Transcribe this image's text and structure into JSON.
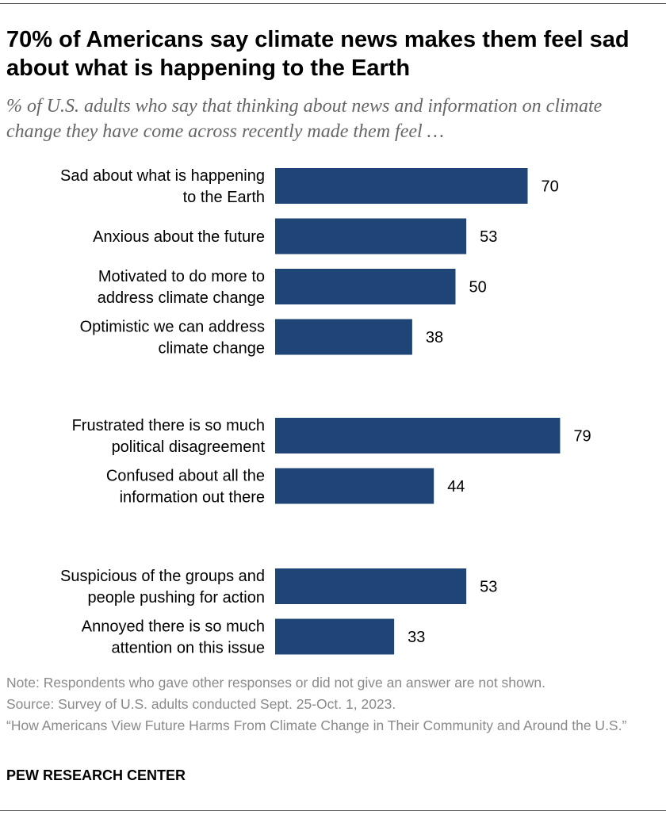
{
  "title": "70% of Americans say climate news makes them feel sad about what is happening to the Earth",
  "subtitle": "% of U.S. adults who say that thinking about news and information on climate change they have come across recently made them feel …",
  "chart_data": {
    "type": "bar",
    "orientation": "horizontal",
    "title": "70% of Americans say climate news makes them feel sad about what is happening to the Earth",
    "xlabel": "",
    "ylabel": "",
    "xlim": [
      0,
      100
    ],
    "grid": false,
    "bar_color": "#1f4576",
    "groups": [
      {
        "items": [
          {
            "label_lines": [
              "Sad about what is happening",
              "to the Earth"
            ],
            "value": 70
          },
          {
            "label_lines": [
              "Anxious about the future"
            ],
            "value": 53
          },
          {
            "label_lines": [
              "Motivated to do more to",
              "address climate change"
            ],
            "value": 50
          },
          {
            "label_lines": [
              "Optimistic we can address",
              "climate change"
            ],
            "value": 38
          }
        ]
      },
      {
        "items": [
          {
            "label_lines": [
              "Frustrated there is so much",
              "political disagreement"
            ],
            "value": 79
          },
          {
            "label_lines": [
              "Confused about all the",
              "information out there"
            ],
            "value": 44
          }
        ]
      },
      {
        "items": [
          {
            "label_lines": [
              "Suspicious of the groups and",
              "people pushing for action"
            ],
            "value": 53
          },
          {
            "label_lines": [
              "Annoyed there is so much",
              "attention on this issue"
            ],
            "value": 33
          }
        ]
      }
    ]
  },
  "notes": {
    "note": "Note: Respondents who gave other responses or did not give an answer are not shown.",
    "source": "Source: Survey of U.S. adults conducted Sept. 25-Oct. 1, 2023.",
    "report": "“How Americans View Future Harms From Climate Change in Their Community and Around the U.S.”"
  },
  "brand": "PEW RESEARCH CENTER"
}
